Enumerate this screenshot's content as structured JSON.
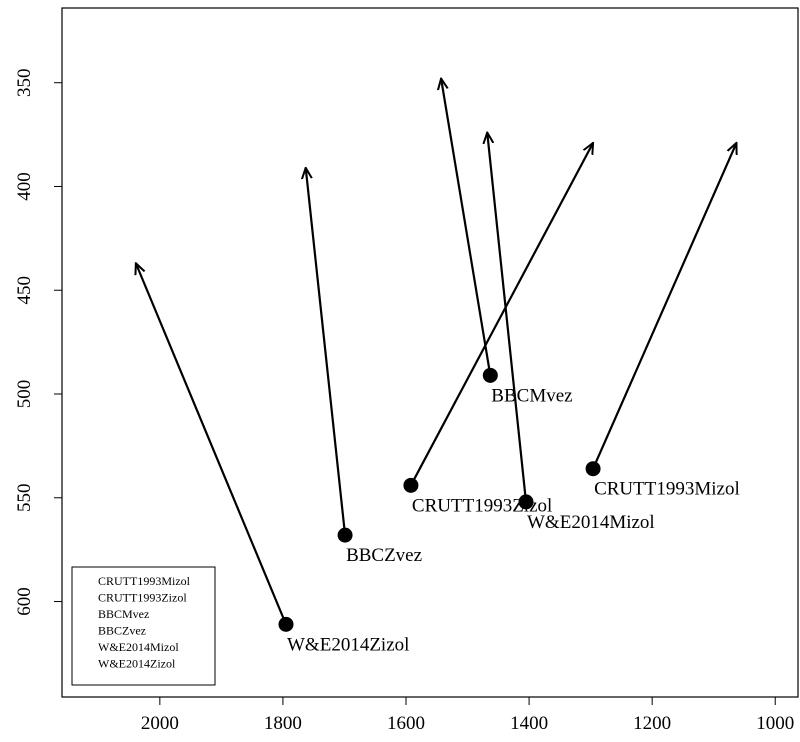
{
  "chart_data": {
    "type": "arrows",
    "series": [
      {
        "name": "CRUTT1993Mizol",
        "x": 1296,
        "y": 536,
        "x_end": 1063,
        "y_end": 379
      },
      {
        "name": "CRUTT1993Zizol",
        "x": 1592,
        "y": 544,
        "x_end": 1296,
        "y_end": 379
      },
      {
        "name": "BBCMvez",
        "x": 1463,
        "y": 491,
        "x_end": 1543,
        "y_end": 348
      },
      {
        "name": "BBCZvez",
        "x": 1699,
        "y": 568,
        "x_end": 1763,
        "y_end": 391
      },
      {
        "name": "W&E2014Mizol",
        "x": 1405,
        "y": 552,
        "x_end": 1468,
        "y_end": 374
      },
      {
        "name": "W&E2014Zizol",
        "x": 1795,
        "y": 611,
        "x_end": 2039,
        "y_end": 437
      }
    ],
    "xlim": [
      2159,
      963
    ],
    "ylim": [
      314,
      646
    ],
    "xticks": [
      2000,
      1800,
      1600,
      1400,
      1200,
      1000
    ],
    "yticks": [
      350,
      400,
      450,
      500,
      550,
      600
    ],
    "legend": "bottom-left"
  }
}
